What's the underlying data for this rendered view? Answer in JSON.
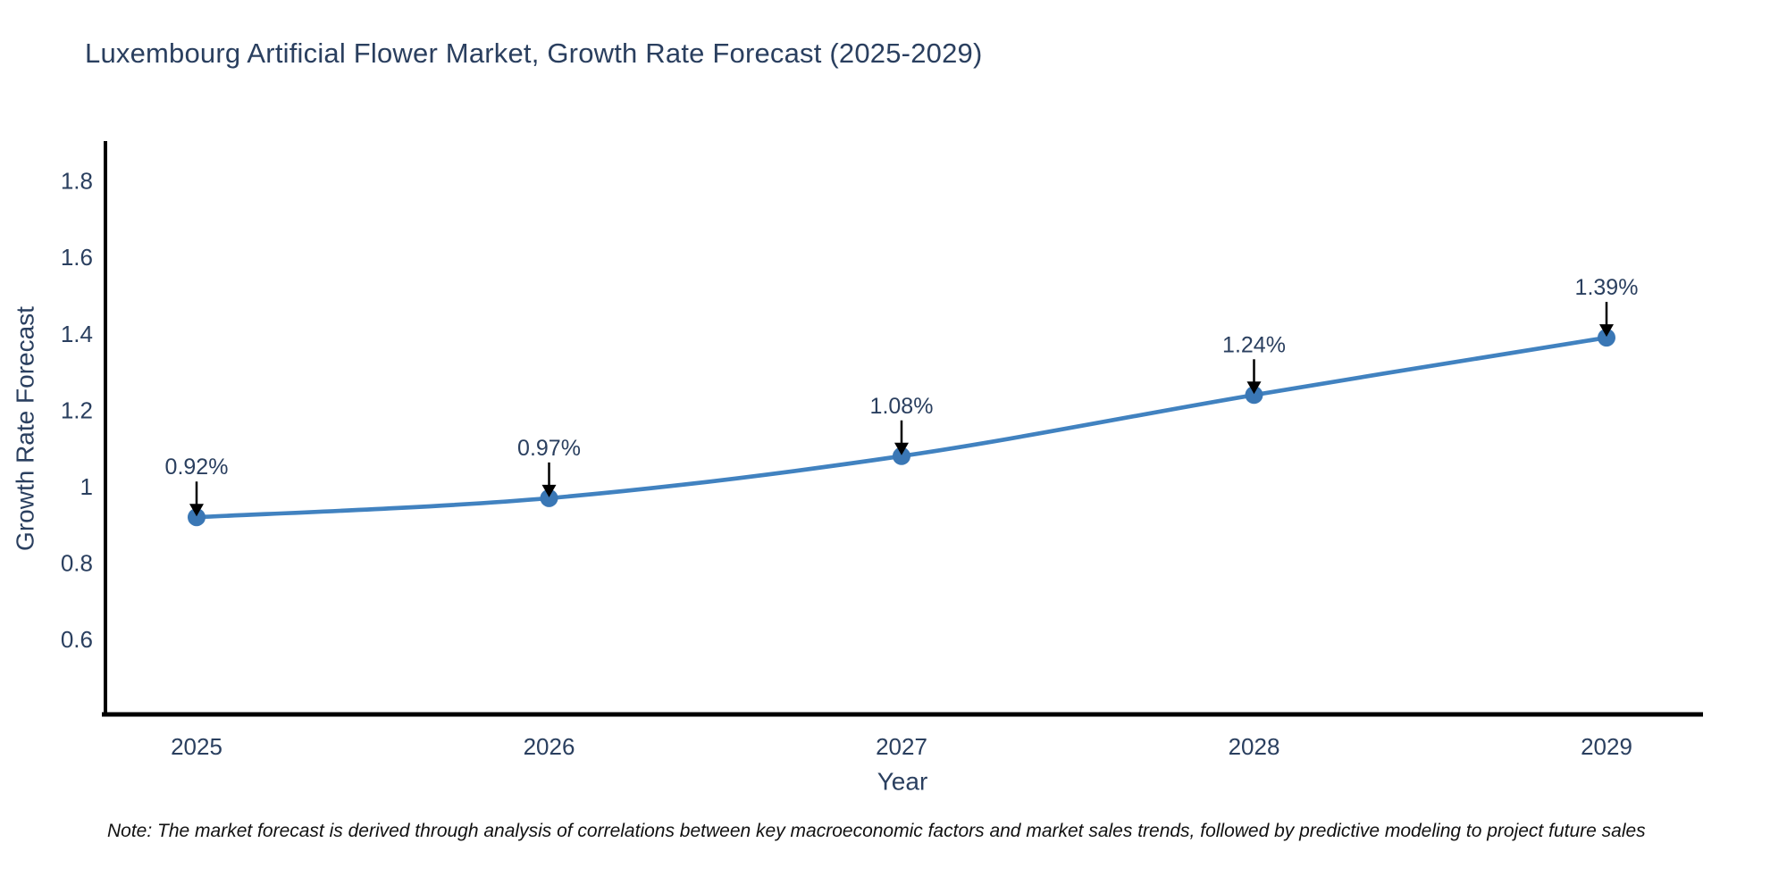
{
  "page": {
    "note": "Note: The market forecast is derived through analysis of correlations between key macroeconomic factors and market sales trends, followed by predictive modeling to project future sales"
  },
  "chart_data": {
    "type": "line",
    "title": "Luxembourg Artificial Flower Market, Growth Rate Forecast (2025-2029)",
    "xlabel": "Year",
    "ylabel": "Growth Rate Forecast",
    "x": [
      2025,
      2026,
      2027,
      2028,
      2029
    ],
    "series": [
      {
        "name": "Growth Rate Forecast",
        "values": [
          0.92,
          0.97,
          1.08,
          1.24,
          1.39
        ],
        "point_labels": [
          "0.92%",
          "0.97%",
          "1.08%",
          "1.24%",
          "1.39%"
        ]
      }
    ],
    "yticks": [
      1.8,
      1.6,
      1.4,
      1.2,
      1,
      0.8,
      0.6
    ],
    "ylim": [
      0.45,
      1.92
    ],
    "xlim_years": [
      2024.73,
      2029.27
    ],
    "line_shape": "spline",
    "grid": false,
    "legend_position": "none",
    "annotations_have_arrows": true,
    "colors": {
      "line": "#4182c0",
      "marker": "#3a77b5",
      "axis": "#000000",
      "text": "#2a3f5f",
      "arrow": "#000000",
      "note_text": "#111111",
      "background": "#ffffff"
    }
  }
}
